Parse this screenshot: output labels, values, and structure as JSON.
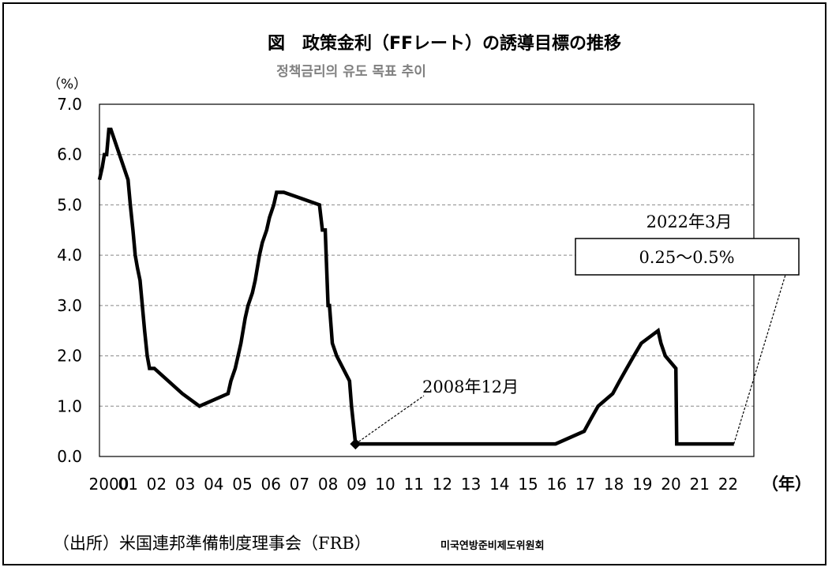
{
  "chart_data": {
    "type": "line",
    "title": "図　政策金利（FFレート）の誘導目標の推移",
    "subtitle": "정책금리의 유도 목표 추이",
    "ylabel": "（%）",
    "xlabel": "（年）",
    "ylim": [
      0,
      7
    ],
    "xlim": [
      2000,
      2022.9
    ],
    "y_ticks": [
      "0.0",
      "1.0",
      "2.0",
      "3.0",
      "4.0",
      "5.0",
      "6.0",
      "7.0"
    ],
    "x_ticks": [
      {
        "year": 2000,
        "label": "2000"
      },
      {
        "year": 2001,
        "label": "01"
      },
      {
        "year": 2002,
        "label": "02"
      },
      {
        "year": 2003,
        "label": "03"
      },
      {
        "year": 2004,
        "label": "04"
      },
      {
        "year": 2005,
        "label": "05"
      },
      {
        "year": 2006,
        "label": "06"
      },
      {
        "year": 2007,
        "label": "07"
      },
      {
        "year": 2008,
        "label": "08"
      },
      {
        "year": 2009,
        "label": "09"
      },
      {
        "year": 2010,
        "label": "10"
      },
      {
        "year": 2011,
        "label": "11"
      },
      {
        "year": 2012,
        "label": "12"
      },
      {
        "year": 2013,
        "label": "13"
      },
      {
        "year": 2014,
        "label": "14"
      },
      {
        "year": 2015,
        "label": "15"
      },
      {
        "year": 2016,
        "label": "16"
      },
      {
        "year": 2017,
        "label": "17"
      },
      {
        "year": 2018,
        "label": "18"
      },
      {
        "year": 2019,
        "label": "19"
      },
      {
        "year": 2020,
        "label": "20"
      },
      {
        "year": 2021,
        "label": "21"
      },
      {
        "year": 2022,
        "label": "22"
      }
    ],
    "grid": "horizontal dashed",
    "series": [
      {
        "name": "FFレート誘導目標",
        "x": [
          2000.0,
          2000.1,
          2000.17,
          2000.25,
          2000.33,
          2000.4,
          2001.0,
          2001.08,
          2001.17,
          2001.25,
          2001.33,
          2001.42,
          2001.58,
          2001.67,
          2001.75,
          2001.83,
          2001.92,
          2002.9,
          2003.5,
          2004.5,
          2004.6,
          2004.75,
          2004.85,
          2004.95,
          2005.1,
          2005.2,
          2005.35,
          2005.45,
          2005.6,
          2005.7,
          2005.85,
          2005.95,
          2006.1,
          2006.2,
          2006.35,
          2006.45,
          2007.7,
          2007.8,
          2007.9,
          2008.0,
          2008.05,
          2008.15,
          2008.3,
          2008.75,
          2008.82,
          2008.96,
          2015.96,
          2016.96,
          2017.2,
          2017.45,
          2017.96,
          2018.2,
          2018.45,
          2018.7,
          2018.96,
          2019.55,
          2019.65,
          2019.8,
          2020.17,
          2020.2,
          2022.2
        ],
        "y": [
          5.5,
          5.75,
          6.0,
          6.0,
          6.5,
          6.5,
          5.5,
          5.0,
          4.5,
          4.0,
          3.75,
          3.5,
          2.5,
          2.0,
          1.75,
          1.75,
          1.75,
          1.25,
          1.0,
          1.25,
          1.5,
          1.75,
          2.0,
          2.25,
          2.75,
          3.0,
          3.25,
          3.5,
          4.0,
          4.25,
          4.5,
          4.75,
          5.0,
          5.25,
          5.25,
          5.25,
          5.0,
          4.5,
          4.5,
          3.0,
          3.0,
          2.25,
          2.0,
          1.5,
          1.0,
          0.25,
          0.25,
          0.5,
          0.75,
          1.0,
          1.25,
          1.5,
          1.75,
          2.0,
          2.25,
          2.5,
          2.25,
          2.0,
          1.75,
          0.25,
          0.25
        ]
      }
    ],
    "marker": {
      "x": 2008.96,
      "y": 0.25
    },
    "annotations": [
      {
        "id": "a2008",
        "text": "2008年12月",
        "x": 2008.96,
        "y": 0.25
      },
      {
        "id": "a2022",
        "text": "2022年3月",
        "value_text": "0.25～0.5%",
        "x": 2022.2,
        "y": 0.25
      }
    ],
    "source": "（出所）米国連邦準備制度理事会（FRB）",
    "source_korean": "미국연방준비제도위원회"
  }
}
